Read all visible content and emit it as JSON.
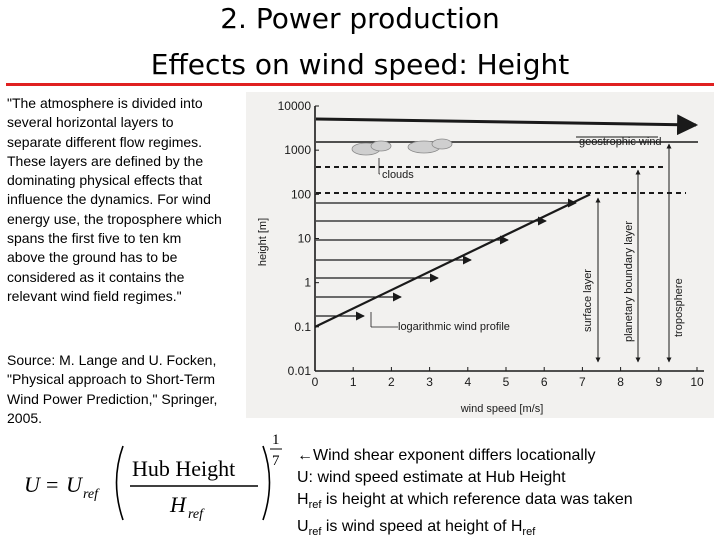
{
  "title": {
    "line1": "2. Power production",
    "line2": "Effects on wind speed: Height"
  },
  "quote_text": "\"The atmosphere is divided into several horizontal layers to separate different flow regimes. These layers are defined by the dominating physical effects that influence the dynamics. For wind energy use, the troposphere which spans the first five to ten km above the ground has to be considered as it contains the relevant wind field regimes.\"",
  "source_text": "Source: M. Lange and U. Focken, \"Physical approach to Short-Term Wind Power Prediction,\" Springer, 2005.",
  "chart_data": {
    "type": "line",
    "xlabel": "wind speed [m/s]",
    "ylabel": "height [m]",
    "x_ticks": [
      "0",
      "1",
      "2",
      "3",
      "4",
      "5",
      "6",
      "7",
      "8",
      "9",
      "10"
    ],
    "y_ticks": [
      "0.01",
      "0.1",
      "1",
      "10",
      "100",
      "1000",
      "10000"
    ],
    "xlim": [
      0,
      10
    ],
    "ylim": [
      0.01,
      10000
    ],
    "y_scale": "log",
    "series": [
      {
        "x": [
          0,
          7.2
        ],
        "y": [
          0.1,
          100
        ]
      }
    ],
    "annotations": {
      "geostrophic": "geostrophic wind",
      "clouds": "clouds",
      "log_profile": "logarithmic wind profile",
      "surface_layer": "surface layer",
      "pbl": "planetary boundary layer",
      "troposphere": "troposphere"
    },
    "colors": {
      "ink": "#1a1a1a",
      "background": "#f2f1ef"
    }
  },
  "formula": {
    "lhs": "U",
    "eq": "=",
    "u": "U",
    "u_sub": "ref",
    "num": "Hub Height",
    "den": "H",
    "den_sub": "ref",
    "exp_num": "1",
    "exp_den": "7"
  },
  "notes": {
    "line1": "←Wind shear exponent differs locationally",
    "line2": "U: wind speed estimate at Hub Height",
    "line3_a": "H",
    "line3_sub": "ref",
    "line3_b": "  is height at which reference data was taken",
    "line4_a": "U",
    "line4_sub": "ref",
    "line4_b": "  is wind speed at height of H",
    "line4_sub2": "ref"
  }
}
